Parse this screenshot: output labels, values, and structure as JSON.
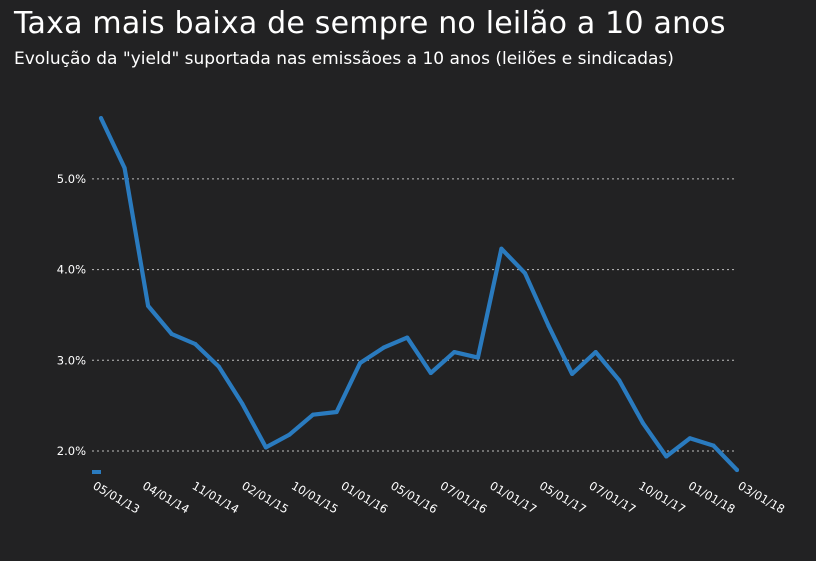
{
  "chart_data": {
    "type": "line",
    "title": "Taxa mais baixa de sempre no leilão a 10 anos",
    "subtitle": "Evolução da \"yield\" suportada nas emissãoes a 10 anos (leilões e sindicadas)",
    "xlabel": "",
    "ylabel": "",
    "ylim": [
      1.8,
      5.7
    ],
    "yticks": [
      2.0,
      3.0,
      4.0,
      5.0
    ],
    "ytick_labels": [
      "2.0%",
      "3.0%",
      "4.0%",
      "5.0%"
    ],
    "grid": true,
    "xtick_labels": [
      "05/01/13",
      "04/01/14",
      "11/01/14",
      "02/01/15",
      "10/01/15",
      "01/01/16",
      "05/01/16",
      "07/01/16",
      "01/01/17",
      "05/01/17",
      "07/01/17",
      "10/01/17",
      "01/01/18",
      "03/01/18"
    ],
    "series": [
      {
        "color": "#2a7bbf",
        "values": [
          5.67,
          5.12,
          3.6,
          3.29,
          3.18,
          2.93,
          2.52,
          2.04,
          2.18,
          2.4,
          2.43,
          2.97,
          3.14,
          3.25,
          2.86,
          3.09,
          3.03,
          4.23,
          3.96,
          3.38,
          2.85,
          3.09,
          2.78,
          2.31,
          1.94,
          2.14,
          2.06,
          1.79
        ]
      }
    ]
  }
}
